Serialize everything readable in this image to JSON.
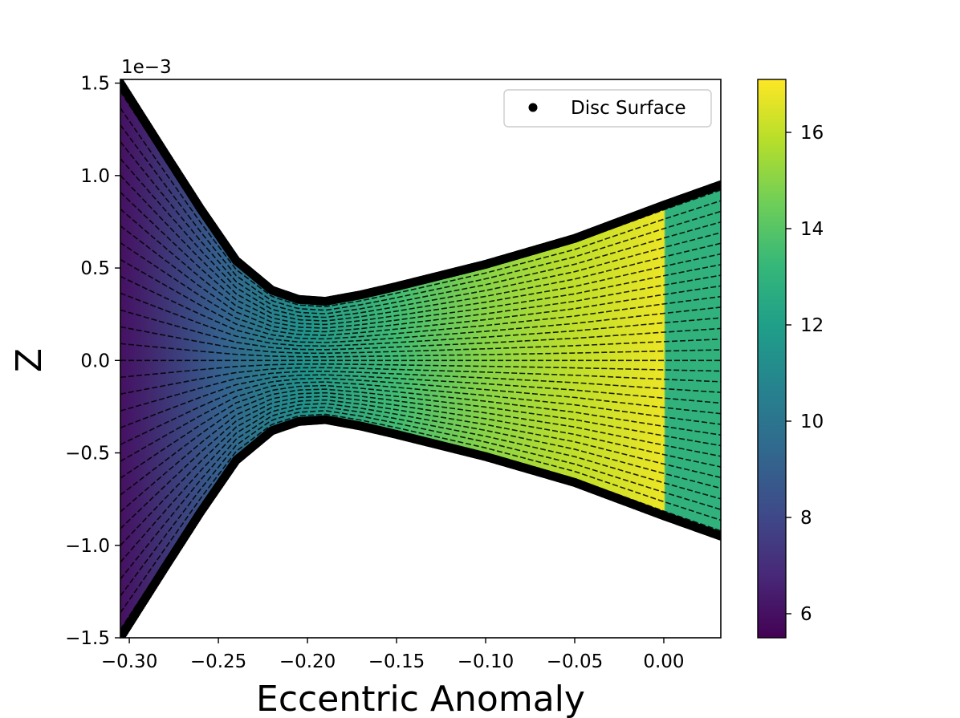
{
  "chart_data": {
    "type": "heatmap",
    "title": "",
    "xlabel": "Eccentric Anomaly",
    "ylabel": "Z",
    "y_offset_label": "1e−3",
    "xlim": [
      -0.305,
      0.032
    ],
    "ylim": [
      -1.5,
      1.52
    ],
    "y_scale_factor": 0.001,
    "x_ticks": [
      -0.3,
      -0.25,
      -0.2,
      -0.15,
      -0.1,
      -0.05,
      0.0
    ],
    "x_tick_labels": [
      "−0.30",
      "−0.25",
      "−0.20",
      "−0.15",
      "−0.10",
      "−0.05",
      "0.00"
    ],
    "y_ticks": [
      -1.5,
      -1.0,
      -0.5,
      0.0,
      0.5,
      1.0,
      1.5
    ],
    "y_tick_labels": [
      "−1.5",
      "−1.0",
      "−0.5",
      "0.0",
      "0.5",
      "1.0",
      "1.5"
    ],
    "colorbar": {
      "colormap": "viridis",
      "range": [
        5.5,
        17.1
      ],
      "ticks": [
        6,
        8,
        10,
        12,
        14,
        16
      ],
      "tick_labels": [
        "6",
        "8",
        "10",
        "12",
        "14",
        "16"
      ]
    },
    "legend": {
      "position": "top-right",
      "entries": [
        {
          "label": "Disc Surface",
          "marker": "circle",
          "color": "#000000"
        }
      ]
    },
    "series": [
      {
        "name": "Disc Surface",
        "type": "scatter",
        "x": [
          -0.305,
          -0.28,
          -0.26,
          -0.24,
          -0.22,
          -0.205,
          -0.19,
          -0.17,
          -0.15,
          -0.1,
          -0.05,
          0.0,
          0.032
        ],
        "upper": [
          1.5,
          1.12,
          0.82,
          0.54,
          0.38,
          0.33,
          0.32,
          0.355,
          0.4,
          0.52,
          0.66,
          0.84,
          0.95
        ],
        "lower": [
          -1.5,
          -1.12,
          -0.82,
          -0.54,
          -0.38,
          -0.33,
          -0.32,
          -0.355,
          -0.4,
          -0.52,
          -0.66,
          -0.84,
          -0.95
        ]
      }
    ],
    "field": {
      "name": "colour field",
      "x_points": [
        -0.305,
        -0.25,
        -0.2,
        -0.15,
        -0.1,
        -0.05,
        0.0,
        0.001,
        0.032
      ],
      "values": [
        6.0,
        9.0,
        11.5,
        13.5,
        15.0,
        16.0,
        16.8,
        13.0,
        13.0
      ],
      "streamline_count": 33
    }
  }
}
